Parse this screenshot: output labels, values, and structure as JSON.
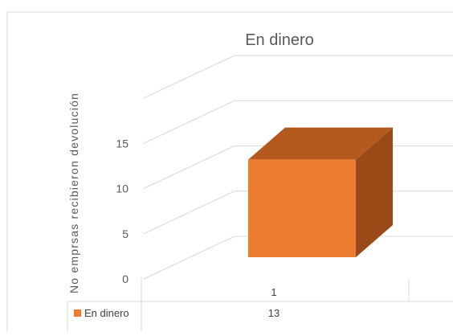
{
  "chart_data": {
    "type": "bar",
    "title": "En dinero",
    "ylabel": "No emprsas recibieron devolución",
    "categories": [
      "1"
    ],
    "series": [
      {
        "name": "En dinero",
        "values": [
          13
        ],
        "color": "#ED7D31"
      }
    ],
    "yticks": [
      "0",
      "5",
      "10",
      "15"
    ],
    "ylim": [
      0,
      20
    ],
    "grid": true,
    "three_d": true,
    "legend": "data-table-left",
    "data_table": {
      "show": true,
      "row_label": "En dinero",
      "values": [
        "13"
      ]
    }
  }
}
